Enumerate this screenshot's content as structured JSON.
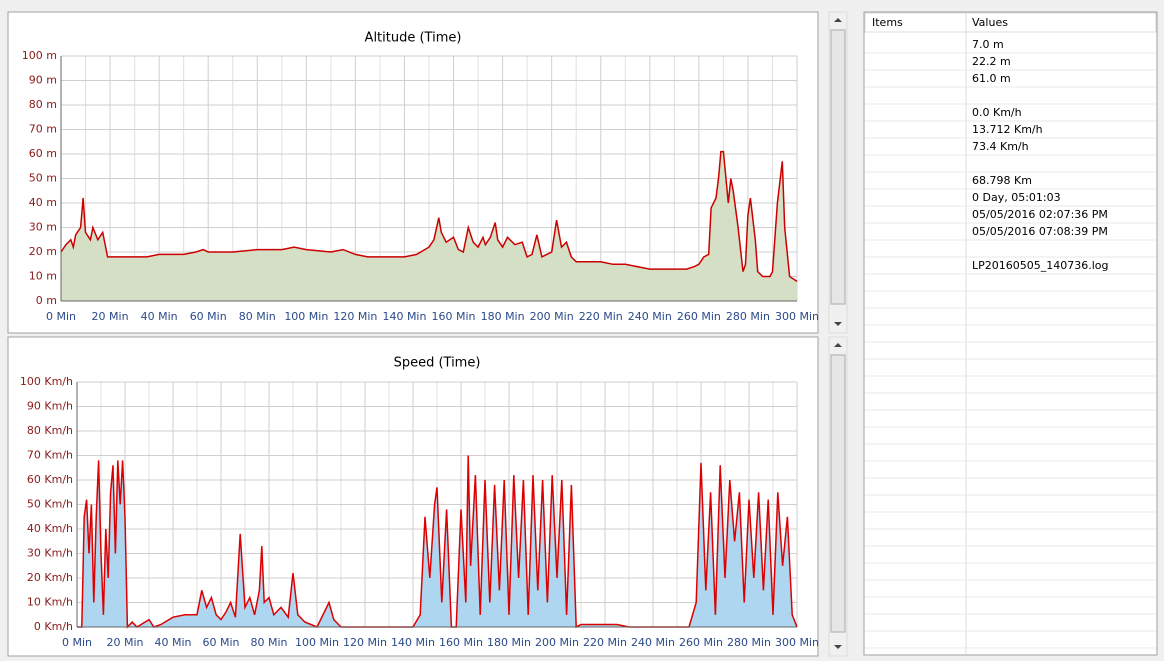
{
  "chart_data": [
    {
      "type": "area",
      "title": "Altitude (Time)",
      "color": "#cc0000",
      "fill": "#d5dfc6",
      "grid": true,
      "x": [
        0,
        2,
        4,
        5,
        6,
        8,
        9,
        10,
        12,
        13,
        15,
        17,
        19,
        25,
        30,
        35,
        40,
        45,
        50,
        55,
        58,
        60,
        70,
        80,
        90,
        95,
        100,
        110,
        115,
        120,
        125,
        130,
        140,
        145,
        150,
        152,
        154,
        155,
        157,
        160,
        162,
        164,
        166,
        168,
        170,
        172,
        173,
        175,
        177,
        178,
        180,
        182,
        185,
        188,
        190,
        192,
        194,
        196,
        198,
        200,
        202,
        204,
        206,
        208,
        210,
        215,
        220,
        225,
        230,
        240,
        250,
        255,
        258,
        260,
        262,
        264,
        265,
        267,
        268,
        269,
        270,
        272,
        273,
        274,
        276,
        278,
        279,
        280,
        281,
        283,
        284,
        286,
        289,
        290,
        292,
        294,
        295,
        297,
        300
      ],
      "values": [
        20,
        23,
        25,
        22,
        27,
        30,
        42,
        28,
        25,
        30,
        25,
        28,
        18,
        18,
        18,
        18,
        19,
        19,
        19,
        20,
        21,
        20,
        20,
        21,
        21,
        22,
        21,
        20,
        21,
        19,
        18,
        18,
        18,
        19,
        22,
        25,
        34,
        28,
        24,
        26,
        21,
        20,
        30,
        24,
        22,
        26,
        23,
        26,
        32,
        25,
        22,
        26,
        23,
        24,
        18,
        19,
        27,
        18,
        19,
        20,
        33,
        22,
        24,
        18,
        16,
        16,
        16,
        15,
        15,
        13,
        13,
        13,
        14,
        15,
        18,
        19,
        38,
        42,
        50,
        61,
        61,
        40,
        50,
        45,
        30,
        12,
        15,
        35,
        42,
        25,
        12,
        10,
        10,
        12,
        40,
        57,
        30,
        10,
        8
      ],
      "xlim": [
        0,
        300
      ],
      "ylim": [
        0,
        100
      ],
      "xticks": [
        {
          "value": 0,
          "label": "0 Min"
        },
        {
          "value": 20,
          "label": "20 Min"
        },
        {
          "value": 40,
          "label": "40 Min"
        },
        {
          "value": 60,
          "label": "60 Min"
        },
        {
          "value": 80,
          "label": "80 Min"
        },
        {
          "value": 100,
          "label": "100 Min"
        },
        {
          "value": 120,
          "label": "120 Min"
        },
        {
          "value": 140,
          "label": "140 Min"
        },
        {
          "value": 160,
          "label": "160 Min"
        },
        {
          "value": 180,
          "label": "180 Min"
        },
        {
          "value": 200,
          "label": "200 Min"
        },
        {
          "value": 220,
          "label": "220 Min"
        },
        {
          "value": 240,
          "label": "240 Min"
        },
        {
          "value": 260,
          "label": "260 Min"
        },
        {
          "value": 280,
          "label": "280 Min"
        },
        {
          "value": 300,
          "label": "300 Min"
        }
      ],
      "yticks": [
        {
          "value": 0,
          "label": "0 m"
        },
        {
          "value": 10,
          "label": "10 m"
        },
        {
          "value": 20,
          "label": "20 m"
        },
        {
          "value": 30,
          "label": "30 m"
        },
        {
          "value": 40,
          "label": "40 m"
        },
        {
          "value": 50,
          "label": "50 m"
        },
        {
          "value": 60,
          "label": "60 m"
        },
        {
          "value": 70,
          "label": "70 m"
        },
        {
          "value": 80,
          "label": "80 m"
        },
        {
          "value": 90,
          "label": "90 m"
        },
        {
          "value": 100,
          "label": "100 m"
        }
      ]
    },
    {
      "type": "area",
      "title": "Speed (Time)",
      "color": "#dd0000",
      "fill": "#aed6f0",
      "grid": true,
      "x": [
        0,
        2,
        3,
        4,
        5,
        6,
        7,
        8,
        9,
        10,
        11,
        12,
        13,
        14,
        15,
        16,
        17,
        18,
        19,
        20,
        21,
        23,
        25,
        30,
        32,
        35,
        40,
        45,
        50,
        52,
        54,
        56,
        58,
        60,
        62,
        64,
        66,
        68,
        70,
        72,
        74,
        76,
        77,
        78,
        80,
        82,
        85,
        88,
        90,
        92,
        95,
        100,
        105,
        107,
        110,
        120,
        130,
        140,
        143,
        145,
        147,
        149,
        150,
        152,
        154,
        156,
        158,
        160,
        162,
        163,
        164,
        166,
        168,
        170,
        172,
        174,
        176,
        178,
        180,
        182,
        184,
        186,
        188,
        190,
        192,
        194,
        196,
        198,
        200,
        202,
        204,
        206,
        208,
        210,
        215,
        220,
        225,
        230,
        240,
        250,
        255,
        258,
        260,
        262,
        264,
        266,
        268,
        270,
        272,
        274,
        276,
        278,
        280,
        282,
        284,
        286,
        288,
        290,
        292,
        294,
        296,
        298,
        300
      ],
      "values": [
        0,
        0,
        45,
        52,
        30,
        50,
        10,
        45,
        68,
        30,
        5,
        40,
        20,
        55,
        66,
        30,
        68,
        50,
        68,
        45,
        0,
        2,
        0,
        3,
        0,
        1,
        4,
        5,
        5,
        15,
        8,
        12,
        5,
        3,
        6,
        10,
        4,
        38,
        8,
        12,
        5,
        15,
        33,
        10,
        12,
        5,
        8,
        4,
        22,
        5,
        2,
        0,
        10,
        3,
        0,
        0,
        0,
        0,
        5,
        45,
        20,
        50,
        57,
        10,
        48,
        0,
        0,
        48,
        10,
        70,
        25,
        62,
        5,
        60,
        10,
        58,
        15,
        60,
        5,
        62,
        20,
        60,
        5,
        62,
        15,
        60,
        10,
        62,
        20,
        60,
        5,
        58,
        0,
        1,
        1,
        1,
        1,
        0,
        0,
        0,
        0,
        10,
        67,
        15,
        55,
        5,
        66,
        20,
        60,
        35,
        55,
        10,
        52,
        20,
        55,
        15,
        52,
        5,
        55,
        25,
        45,
        5,
        0
      ],
      "xlim": [
        0,
        300
      ],
      "ylim": [
        0,
        100
      ],
      "xticks": [
        {
          "value": 0,
          "label": "0 Min"
        },
        {
          "value": 20,
          "label": "20 Min"
        },
        {
          "value": 40,
          "label": "40 Min"
        },
        {
          "value": 60,
          "label": "60 Min"
        },
        {
          "value": 80,
          "label": "80 Min"
        },
        {
          "value": 100,
          "label": "100 Min"
        },
        {
          "value": 120,
          "label": "120 Min"
        },
        {
          "value": 140,
          "label": "140 Min"
        },
        {
          "value": 160,
          "label": "160 Min"
        },
        {
          "value": 180,
          "label": "180 Min"
        },
        {
          "value": 200,
          "label": "200 Min"
        },
        {
          "value": 220,
          "label": "220 Min"
        },
        {
          "value": 240,
          "label": "240 Min"
        },
        {
          "value": 260,
          "label": "260 Min"
        },
        {
          "value": 280,
          "label": "280 Min"
        },
        {
          "value": 300,
          "label": "300 Min"
        }
      ],
      "yticks": [
        {
          "value": 0,
          "label": "0 Km/h"
        },
        {
          "value": 10,
          "label": "10 Km/h"
        },
        {
          "value": 20,
          "label": "20 Km/h"
        },
        {
          "value": 30,
          "label": "30 Km/h"
        },
        {
          "value": 40,
          "label": "40 Km/h"
        },
        {
          "value": 50,
          "label": "50 Km/h"
        },
        {
          "value": 60,
          "label": "60 Km/h"
        },
        {
          "value": 70,
          "label": "70 Km/h"
        },
        {
          "value": 80,
          "label": "80 Km/h"
        },
        {
          "value": 90,
          "label": "90 Km/h"
        },
        {
          "value": 100,
          "label": "100 Km/h"
        }
      ]
    }
  ],
  "table": {
    "headers": [
      "Items",
      "Values"
    ],
    "groups": [
      [
        "7.0 m",
        "22.2 m",
        "61.0 m"
      ],
      [
        "0.0 Km/h",
        "13.712 Km/h",
        "73.4 Km/h"
      ],
      [
        "68.798 Km",
        "0 Day, 05:01:03",
        "05/05/2016 02:07:36 PM",
        "05/05/2016 07:08:39 PM"
      ],
      [
        "LP20160505_140736.log"
      ]
    ]
  }
}
